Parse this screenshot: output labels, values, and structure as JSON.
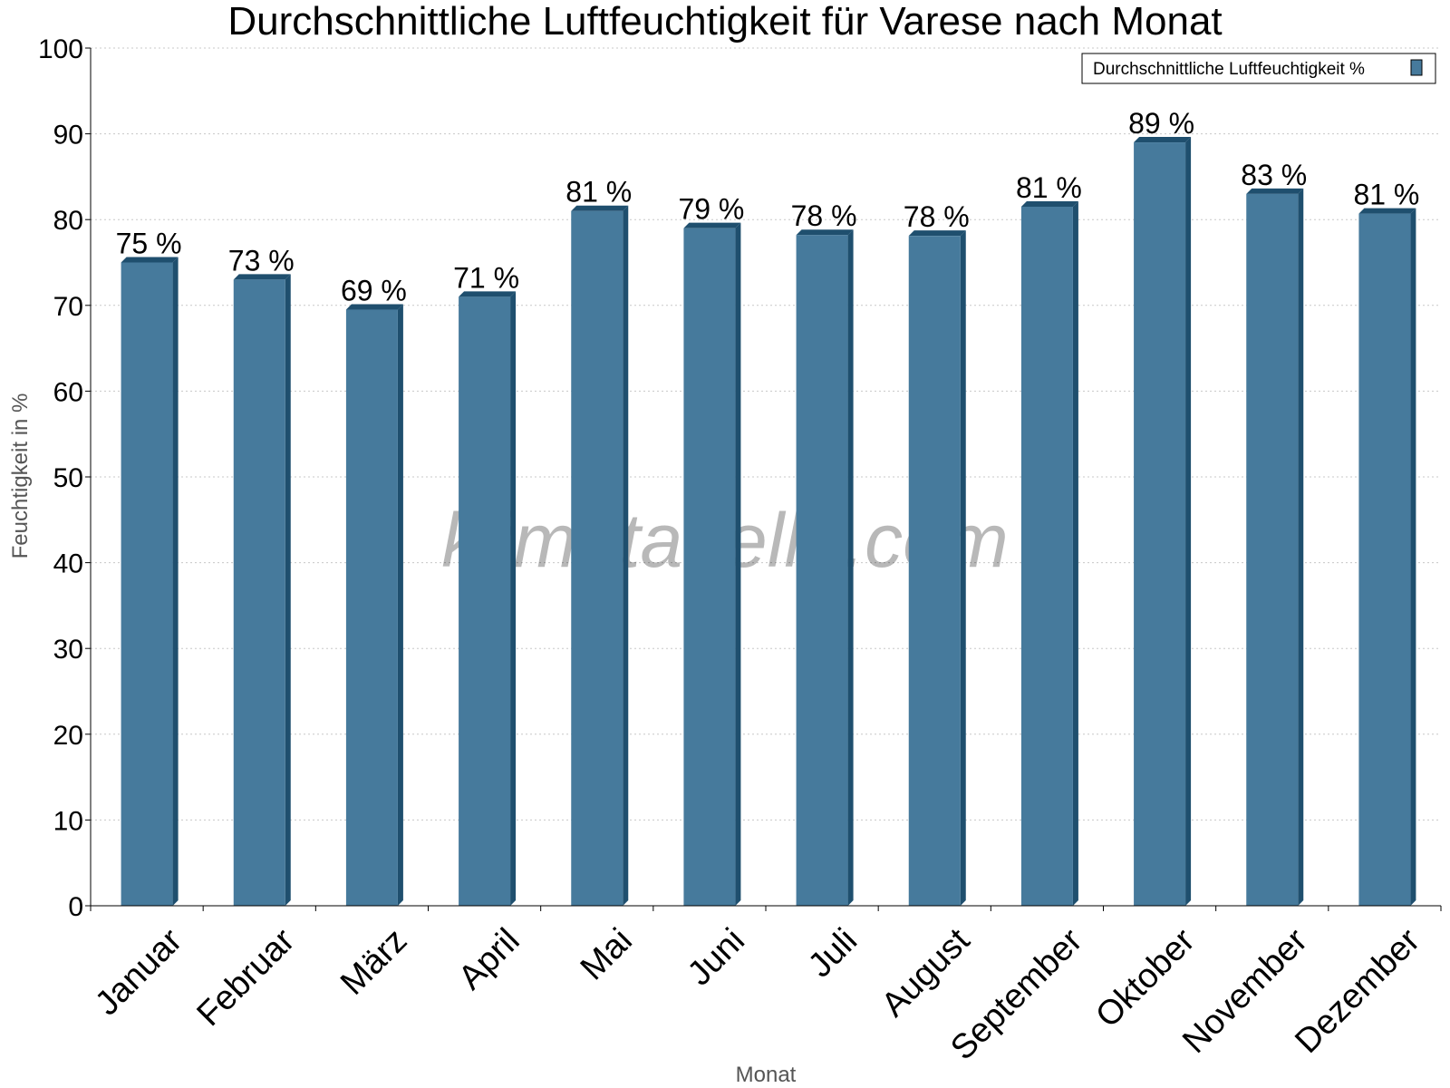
{
  "chart_data": {
    "type": "bar",
    "title": "Durchschnittliche Luftfeuchtigkeit für Varese nach Monat",
    "xlabel": "Monat",
    "ylabel": "Feuchtigkeit in %",
    "ylim": [
      0,
      100
    ],
    "yticks": [
      "0",
      "10",
      "20",
      "30",
      "40",
      "50",
      "60",
      "70",
      "80",
      "90",
      "100"
    ],
    "grid": true,
    "legend_position": "top-right",
    "categories": [
      "Januar",
      "Februar",
      "März",
      "April",
      "Mai",
      "Juni",
      "Juli",
      "August",
      "September",
      "Oktober",
      "November",
      "Dezember"
    ],
    "series": [
      {
        "name": "Durchschnittliche Luftfeuchtigkeit %",
        "values": [
          75,
          73,
          69.5,
          71,
          81,
          79,
          78.2,
          78.1,
          81.5,
          89,
          83,
          80.7
        ],
        "labels": [
          "75 %",
          "73 %",
          "69 %",
          "71 %",
          "81 %",
          "79 %",
          "78 %",
          "78 %",
          "81 %",
          "89 %",
          "83 %",
          "81 %"
        ]
      }
    ],
    "colors": {
      "bar": "#467a9c",
      "bar_dark": "#1f4f6e",
      "grid": "#c8c8c8"
    }
  },
  "watermark": "klimatabelle.com"
}
